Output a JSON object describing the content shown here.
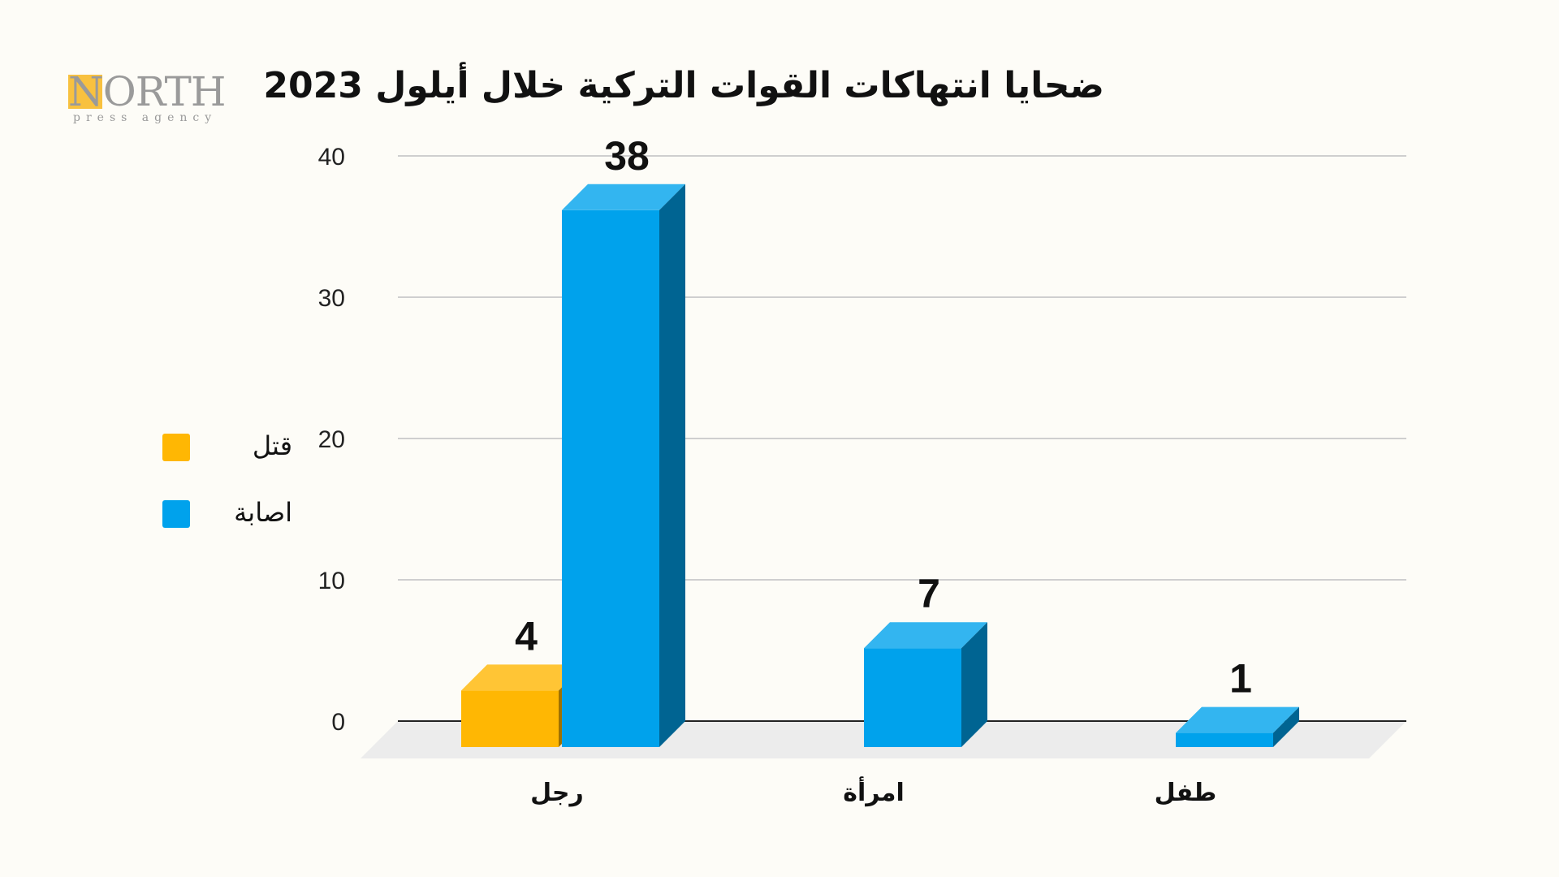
{
  "logo": {
    "text": "NORTH",
    "subtext": "press agency"
  },
  "chart_data": {
    "type": "bar",
    "title": "ضحايا انتهاكات القوات التركية خلال أيلول 2023",
    "categories": [
      "رجل",
      "امرأة",
      "طفل"
    ],
    "series": [
      {
        "name": "قتل",
        "values": [
          4,
          null,
          null
        ],
        "color": "#ffb703"
      },
      {
        "name": "اصابة",
        "values": [
          38,
          7,
          1
        ],
        "color": "#00a2ec"
      }
    ],
    "ylim": [
      0,
      40
    ],
    "yticks": [
      0,
      10,
      20,
      30,
      40
    ],
    "grid": true,
    "legend_position": "left",
    "xlabel": "",
    "ylabel": ""
  }
}
